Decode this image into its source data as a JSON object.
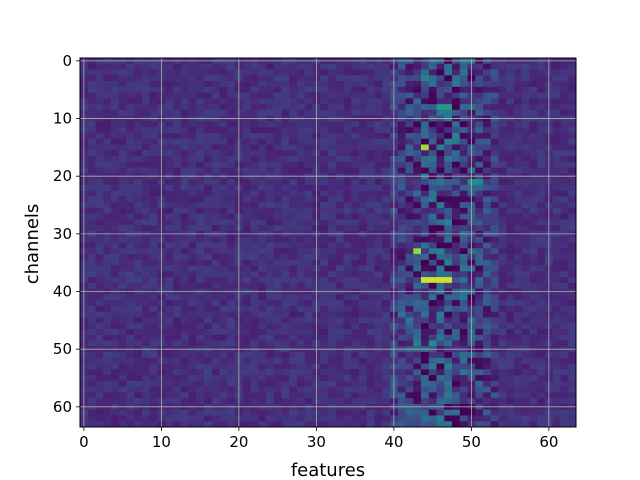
{
  "chart_data": {
    "type": "heatmap",
    "title": "",
    "xlabel": "features",
    "ylabel": "channels",
    "x_range": [
      -0.5,
      63.5
    ],
    "y_range": [
      -0.5,
      63.5
    ],
    "y_inverted": true,
    "grid": true,
    "colormap": "viridis",
    "value_range": [
      0,
      1
    ],
    "n_rows": 64,
    "n_cols": 64,
    "x_ticks": [
      0,
      10,
      20,
      30,
      40,
      50,
      60
    ],
    "y_ticks": [
      0,
      10,
      20,
      30,
      40,
      50,
      60
    ],
    "x_tick_labels": [
      "0",
      "10",
      "20",
      "30",
      "40",
      "50",
      "60"
    ],
    "y_tick_labels": [
      "0",
      "10",
      "20",
      "30",
      "40",
      "50",
      "60"
    ],
    "background_level": 0.17,
    "noisy_columns": [
      40,
      53
    ],
    "highlights": [
      {
        "row": 3,
        "col": 44,
        "value": 0.55
      },
      {
        "row": 3,
        "col": 45,
        "value": 0.45
      },
      {
        "row": 5,
        "col": 45,
        "value": 0.05
      },
      {
        "row": 8,
        "col": 46,
        "value": 0.65
      },
      {
        "row": 8,
        "col": 47,
        "value": 0.65
      },
      {
        "row": 13,
        "col": 48,
        "value": 0.55
      },
      {
        "row": 15,
        "col": 44,
        "value": 0.9
      },
      {
        "row": 21,
        "col": 50,
        "value": 0.6
      },
      {
        "row": 21,
        "col": 51,
        "value": 0.6
      },
      {
        "row": 25,
        "col": 46,
        "value": 0.5
      },
      {
        "row": 28,
        "col": 47,
        "value": 0.55
      },
      {
        "row": 33,
        "col": 43,
        "value": 0.88
      },
      {
        "row": 33,
        "col": 46,
        "value": 0.55
      },
      {
        "row": 38,
        "col": 44,
        "value": 0.95
      },
      {
        "row": 38,
        "col": 45,
        "value": 0.95
      },
      {
        "row": 38,
        "col": 46,
        "value": 0.95
      },
      {
        "row": 38,
        "col": 47,
        "value": 0.95
      },
      {
        "row": 44,
        "col": 41,
        "value": 0.5
      },
      {
        "row": 45,
        "col": 42,
        "value": 0.5
      },
      {
        "row": 49,
        "col": 43,
        "value": 0.55
      },
      {
        "row": 49,
        "col": 45,
        "value": 0.6
      },
      {
        "row": 52,
        "col": 46,
        "value": 0.5
      },
      {
        "row": 56,
        "col": 47,
        "value": 0.5
      },
      {
        "row": 0,
        "col": 49,
        "value": 0.5
      },
      {
        "row": 0,
        "col": 50,
        "value": 0.45
      },
      {
        "row": 61,
        "col": 47,
        "value": 0.45
      }
    ]
  }
}
